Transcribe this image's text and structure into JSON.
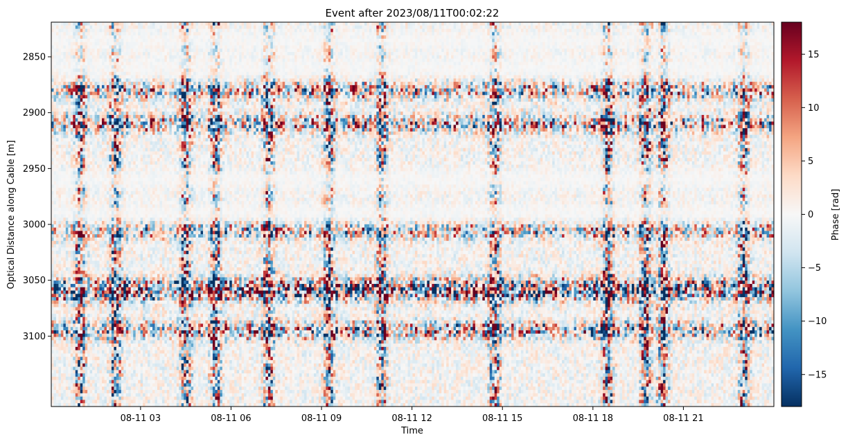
{
  "chart_data": {
    "type": "heatmap",
    "title": "Event after  2023/08/11T00:02:22",
    "xlabel": "Time",
    "ylabel": "Optical Distance along Cable [m]",
    "x_range": [
      "2023-08-11T00:02:22",
      "2023-08-12T00:00:00"
    ],
    "x_tick_values": [
      "2023-08-11T03:00",
      "2023-08-11T06:00",
      "2023-08-11T09:00",
      "2023-08-11T12:00",
      "2023-08-11T15:00",
      "2023-08-11T18:00",
      "2023-08-11T21:00"
    ],
    "x_tick_labels": [
      "08-11 03",
      "08-11 06",
      "08-11 09",
      "08-11 12",
      "08-11 15",
      "08-11 18",
      "08-11 21"
    ],
    "y_range": [
      2819,
      3163
    ],
    "y_inverted": true,
    "y_ticks": [
      2850,
      2900,
      2950,
      3000,
      3050,
      3100
    ],
    "colorbar": {
      "label": "Phase [rad]",
      "range": [
        -18,
        18
      ],
      "ticks": [
        -15,
        -10,
        -5,
        0,
        5,
        10,
        15
      ],
      "tick_labels": [
        "−15",
        "−10",
        "−5",
        "0",
        "5",
        "10",
        "15"
      ],
      "colormap": "RdBu_r"
    },
    "colormap_stops": [
      "#053061",
      "#2166ac",
      "#4393c3",
      "#92c5de",
      "#d1e5f0",
      "#f7f7f7",
      "#fddbc7",
      "#f4a582",
      "#d6604d",
      "#b2182b",
      "#67001f"
    ],
    "strong_activity_bands_m": [
      2880,
      2910,
      3005,
      3055,
      3062,
      3095
    ],
    "quiet_bands_m": [
      2835,
      2860,
      2960,
      2990
    ],
    "vertical_event_times": [
      "2023-08-11T01:00",
      "2023-08-11T02:10",
      "2023-08-11T04:30",
      "2023-08-11T05:30",
      "2023-08-11T07:15",
      "2023-08-11T09:15",
      "2023-08-11T11:00",
      "2023-08-11T14:45",
      "2023-08-11T18:30",
      "2023-08-11T19:45",
      "2023-08-11T20:20",
      "2023-08-11T23:00"
    ]
  }
}
